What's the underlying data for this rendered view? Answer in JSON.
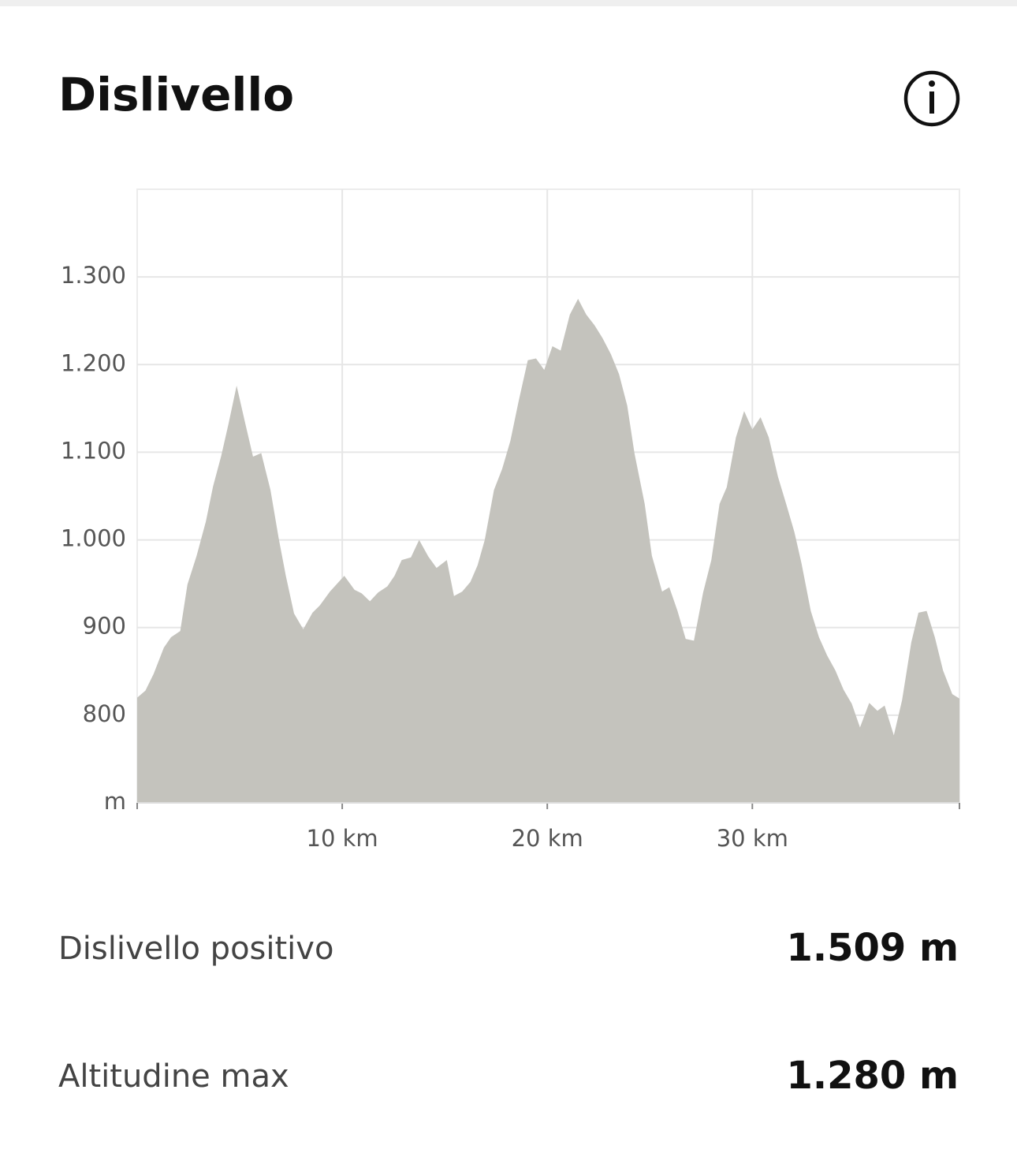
{
  "header": {
    "title": "Dislivello"
  },
  "chart_data": {
    "type": "area",
    "color": "#c4c3bd",
    "grid": true,
    "x": [
      0,
      0.4,
      0.8,
      1.3,
      1.65,
      2.1,
      2.45,
      2.9,
      3.35,
      3.7,
      4.1,
      4.45,
      4.85,
      5.25,
      5.65,
      6.05,
      6.5,
      6.9,
      7.25,
      7.65,
      8.1,
      8.55,
      8.9,
      9.4,
      9.75,
      10.1,
      10.6,
      10.95,
      11.35,
      11.75,
      12.2,
      12.55,
      12.9,
      13.35,
      13.75,
      14.2,
      14.6,
      15.1,
      15.45,
      15.85,
      16.25,
      16.6,
      16.95,
      17.4,
      17.8,
      18.2,
      18.6,
      19.05,
      19.45,
      19.85,
      20.25,
      20.65,
      21.1,
      21.5,
      21.9,
      22.3,
      22.7,
      23.1,
      23.5,
      23.9,
      24.25,
      24.75,
      25.1,
      25.6,
      25.95,
      26.35,
      26.75,
      27.15,
      27.6,
      28,
      28.4,
      28.75,
      29.2,
      29.6,
      30,
      30.4,
      30.8,
      31.25,
      31.65,
      32.05,
      32.4,
      32.85,
      33.25,
      33.65,
      34.05,
      34.45,
      34.85,
      35.25,
      35.7,
      36.1,
      36.45,
      36.9,
      37.3,
      37.75,
      38.1,
      38.5,
      38.9,
      39.3,
      39.75,
      40.1
    ],
    "values": [
      820,
      828,
      847,
      877,
      889,
      896,
      949,
      982,
      1021,
      1061,
      1096,
      1132,
      1176,
      1135,
      1095,
      1099,
      1057,
      1002,
      959,
      916,
      898,
      917,
      925,
      941,
      950,
      959,
      943,
      939,
      930,
      940,
      947,
      959,
      977,
      980,
      1000,
      981,
      968,
      977,
      936,
      941,
      952,
      971,
      1000,
      1057,
      1081,
      1113,
      1158,
      1205,
      1207,
      1194,
      1221,
      1216,
      1257,
      1275,
      1257,
      1245,
      1230,
      1212,
      1189,
      1153,
      1099,
      1041,
      982,
      941,
      946,
      919,
      887,
      885,
      940,
      977,
      1041,
      1060,
      1117,
      1147,
      1126,
      1140,
      1117,
      1072,
      1041,
      1009,
      973,
      919,
      889,
      868,
      851,
      829,
      813,
      786,
      814,
      805,
      811,
      777,
      817,
      883,
      917,
      919,
      889,
      851,
      824,
      819
    ],
    "xlim": [
      0,
      40.1
    ],
    "xticks": [
      {
        "value": 10,
        "label": "10 km"
      },
      {
        "value": 20,
        "label": "20 km"
      },
      {
        "value": 30,
        "label": "30 km"
      }
    ],
    "ylim": [
      700,
      1400
    ],
    "yticks": [
      {
        "value": 700,
        "label": "m"
      },
      {
        "value": 800,
        "label": "800"
      },
      {
        "value": 900,
        "label": "900"
      },
      {
        "value": 1000,
        "label": "1.000"
      },
      {
        "value": 1100,
        "label": "1.100"
      },
      {
        "value": 1200,
        "label": "1.200"
      },
      {
        "value": 1300,
        "label": "1.300"
      }
    ]
  },
  "stats": [
    {
      "label": "Dislivello positivo",
      "value": "1.509 m"
    },
    {
      "label": "Altitudine max",
      "value": "1.280 m"
    }
  ]
}
